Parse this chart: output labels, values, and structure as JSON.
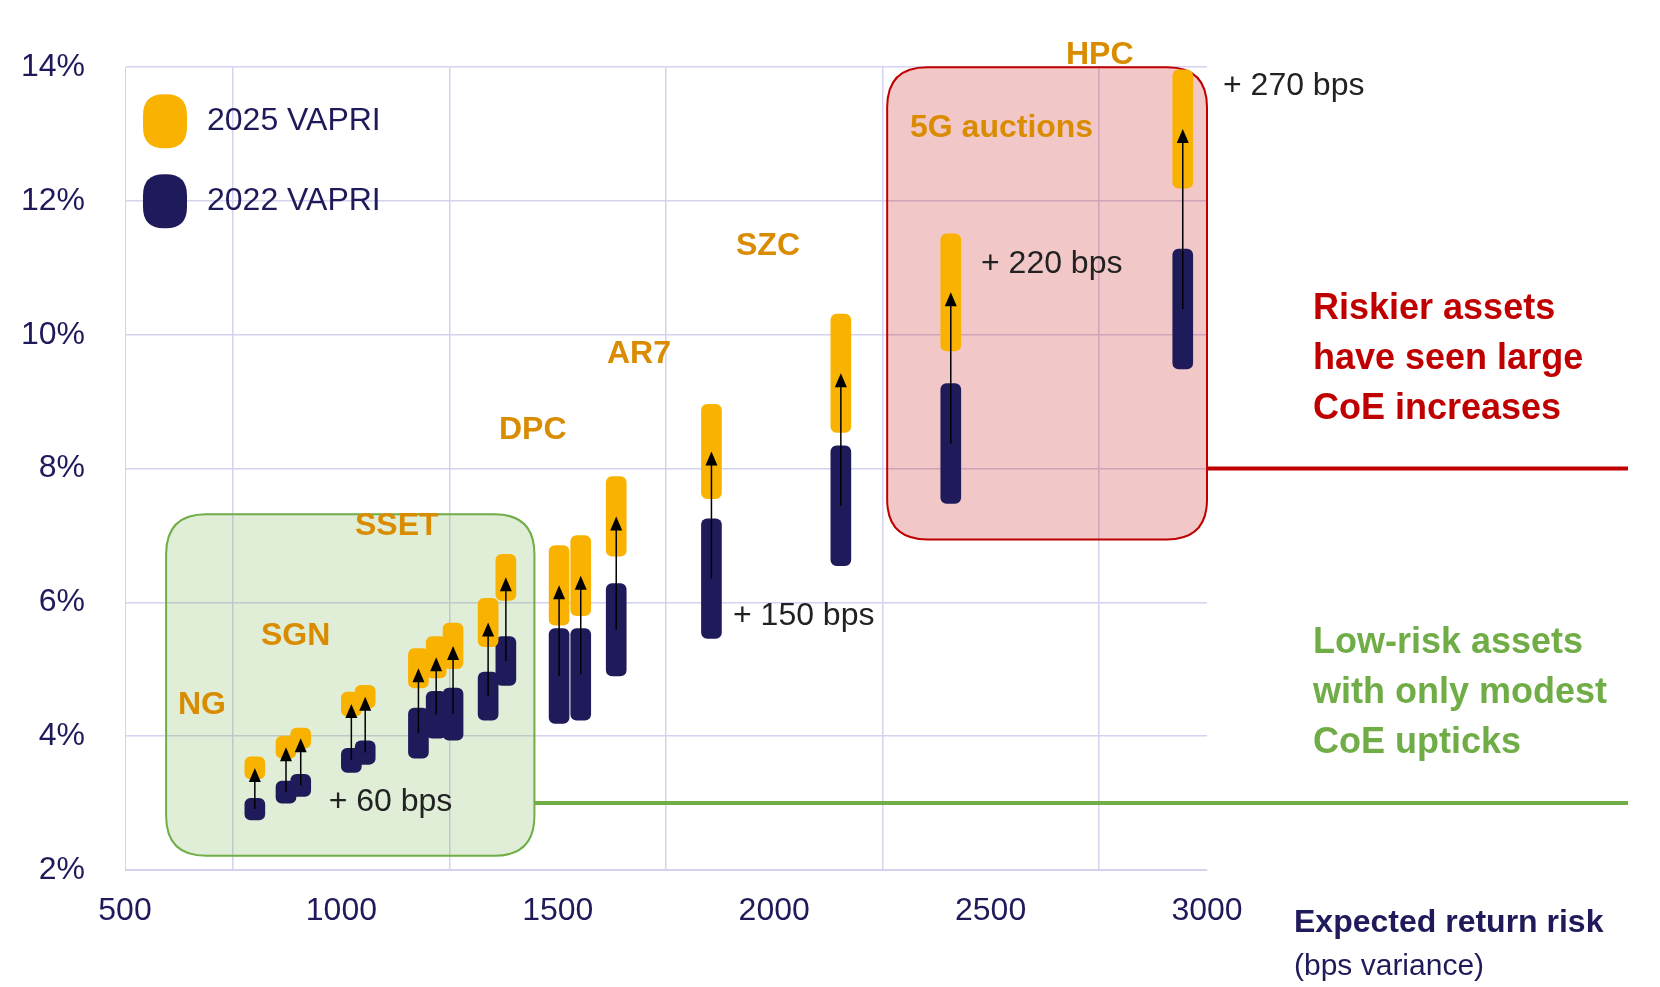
{
  "chart_data": {
    "type": "bar",
    "xlabel": "Expected return risk\n(bps variance)",
    "x": [
      800,
      872,
      906,
      1023,
      1055,
      1178,
      1219,
      1258,
      1339,
      1380,
      1503,
      1553,
      1635,
      1855,
      2154,
      2408,
      2944
    ],
    "series": [
      {
        "name": "2025 VAPRI",
        "color": "#f9b200",
        "base": [
          3.36,
          3.67,
          3.82,
          4.3,
          4.42,
          4.72,
          4.87,
          5.01,
          5.34,
          6.03,
          5.66,
          5.8,
          6.69,
          7.55,
          8.54,
          9.76,
          12.19
        ],
        "values": [
          0.33,
          0.33,
          0.3,
          0.36,
          0.34,
          0.59,
          0.62,
          0.68,
          0.72,
          0.69,
          1.19,
          1.2,
          1.19,
          1.41,
          1.77,
          1.75,
          1.77
        ]
      },
      {
        "name": "2022 VAPRI",
        "color": "#1f1a5a",
        "base": [
          2.75,
          3.0,
          3.1,
          3.46,
          3.58,
          3.67,
          3.97,
          3.94,
          4.24,
          4.76,
          4.19,
          4.24,
          4.9,
          5.46,
          6.55,
          7.48,
          9.49
        ],
        "values": [
          0.32,
          0.33,
          0.33,
          0.36,
          0.35,
          0.75,
          0.7,
          0.78,
          0.72,
          0.73,
          1.42,
          1.37,
          1.38,
          1.79,
          1.79,
          1.79,
          1.79
        ]
      }
    ],
    "xlim": [
      500,
      3000
    ],
    "xticks": [
      500,
      1000,
      1500,
      2000,
      2500,
      3000
    ],
    "ylim": [
      2,
      14
    ],
    "yticks": [
      {
        "value": 2,
        "label": "2%"
      },
      {
        "value": 4,
        "label": "4%"
      },
      {
        "value": 6,
        "label": "6%"
      },
      {
        "value": 8,
        "label": "8%"
      },
      {
        "value": 10,
        "label": "10%"
      },
      {
        "value": 12,
        "label": "12%"
      },
      {
        "value": 14,
        "label": "14%"
      }
    ],
    "grid": true,
    "legend": "top left",
    "bands": [
      {
        "axis": "x",
        "from": 595,
        "to": 1446,
        "color": "#70ad47"
      },
      {
        "axis": "x",
        "from": 2261,
        "to": 3000,
        "color": "#c00000"
      }
    ],
    "ref_lines": [
      {
        "axis": "y",
        "value": 8,
        "label": "Riskier assets\nhave seen large\nCoE increases",
        "color": "#c00000"
      },
      {
        "axis": "y",
        "value": 3,
        "label": "Low-risk assets\nwith only modest\nCoE upticks",
        "color": "#70ad47"
      }
    ],
    "annotations": [
      "NG",
      "SGN",
      "SSET",
      "DPC",
      "AR7",
      "SZC",
      "5G auctions",
      "HPC",
      {
        "text": "+ 60 bps",
        "x": 906,
        "y": 3.1
      },
      "+ 150 bps",
      "+ 220 bps",
      "+ 270 bps"
    ]
  }
}
